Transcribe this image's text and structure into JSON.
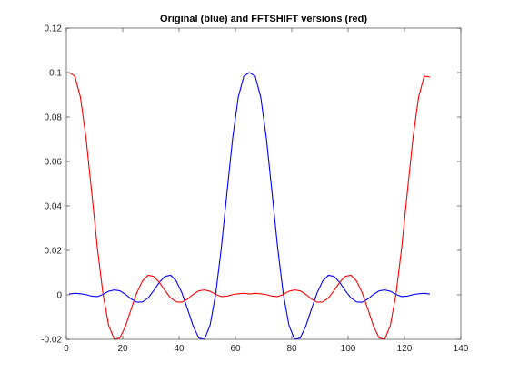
{
  "chart_data": {
    "type": "line",
    "title": "Original (blue) and FFTSHIFT versions (red)",
    "xlabel": "",
    "ylabel": "",
    "xlim": [
      0,
      140
    ],
    "ylim": [
      -0.02,
      0.12
    ],
    "x_ticks": [
      0,
      20,
      40,
      60,
      80,
      100,
      120,
      140
    ],
    "x_tick_labels": [
      "0",
      "20",
      "40",
      "60",
      "80",
      "100",
      "120",
      "140"
    ],
    "y_ticks": [
      -0.02,
      0,
      0.02,
      0.04,
      0.06,
      0.08,
      0.1,
      0.12
    ],
    "y_tick_labels": [
      "-0.02",
      "0",
      "0.02",
      "0.04",
      "0.06",
      "0.08",
      "0.1",
      "0.12"
    ],
    "grid": false,
    "legend": "none",
    "series": [
      {
        "color": "#0000ff",
        "x": [
          1,
          3,
          5,
          7,
          9,
          11,
          13,
          15,
          17,
          19,
          21,
          23,
          25,
          27,
          29,
          31,
          33,
          35,
          37,
          39,
          41,
          43,
          45,
          47,
          49,
          51,
          53,
          55,
          57,
          59,
          61,
          63,
          65,
          67,
          69,
          71,
          73,
          75,
          77,
          79,
          81,
          83,
          85,
          87,
          89,
          91,
          93,
          95,
          97,
          99,
          101,
          103,
          105,
          107,
          109,
          111,
          113,
          115,
          117,
          119,
          121,
          123,
          125,
          127,
          129
        ],
        "y": [
          0.0004,
          0.0007,
          0.0005,
          0.0001,
          -0.0006,
          -0.0008,
          0.0002,
          0.0016,
          0.0022,
          0.0018,
          0.0002,
          -0.0019,
          -0.0033,
          -0.0032,
          -0.0014,
          0.0019,
          0.0056,
          0.0083,
          0.0088,
          0.0062,
          0.0009,
          -0.0064,
          -0.014,
          -0.0194,
          -0.02,
          -0.0137,
          0.0004,
          0.0211,
          0.046,
          0.0703,
          0.0889,
          0.0984,
          0.1,
          0.0984,
          0.0889,
          0.0703,
          0.046,
          0.0211,
          0.0004,
          -0.0137,
          -0.02,
          -0.0194,
          -0.014,
          -0.0064,
          0.0009,
          0.0062,
          0.0088,
          0.0083,
          0.0056,
          0.0019,
          -0.0014,
          -0.0032,
          -0.0033,
          -0.0019,
          0.0002,
          0.0018,
          0.0022,
          0.0016,
          0.0002,
          -0.0008,
          -0.0006,
          0.0001,
          0.0005,
          0.0007,
          0.0004
        ]
      },
      {
        "color": "#ff0000",
        "x": [
          1,
          3,
          5,
          7,
          9,
          11,
          13,
          15,
          17,
          19,
          21,
          23,
          25,
          27,
          29,
          31,
          33,
          35,
          37,
          39,
          41,
          43,
          45,
          47,
          49,
          51,
          53,
          55,
          57,
          59,
          61,
          63,
          65,
          67,
          69,
          71,
          73,
          75,
          77,
          79,
          81,
          83,
          85,
          87,
          89,
          91,
          93,
          95,
          97,
          99,
          101,
          103,
          105,
          107,
          109,
          111,
          113,
          115,
          117,
          119,
          121,
          123,
          125,
          127,
          129
        ],
        "y": [
          0.1,
          0.0984,
          0.0889,
          0.0703,
          0.046,
          0.0211,
          0.0004,
          -0.0137,
          -0.02,
          -0.0194,
          -0.014,
          -0.0064,
          0.0009,
          0.0062,
          0.0088,
          0.0083,
          0.0056,
          0.0019,
          -0.0014,
          -0.0032,
          -0.0033,
          -0.0019,
          0.0002,
          0.0018,
          0.0022,
          0.0016,
          0.0002,
          -0.0008,
          -0.0006,
          0.0001,
          0.0005,
          0.0007,
          0.0004,
          0.0007,
          0.0005,
          0.0001,
          -0.0006,
          -0.0008,
          0.0002,
          0.0016,
          0.0022,
          0.0018,
          0.0002,
          -0.0019,
          -0.0033,
          -0.0032,
          -0.0014,
          0.0019,
          0.0056,
          0.0083,
          0.0088,
          0.0062,
          0.0009,
          -0.0064,
          -0.014,
          -0.0194,
          -0.02,
          -0.0137,
          0.0004,
          0.0211,
          0.046,
          0.0703,
          0.0889,
          0.0984,
          0.098
        ]
      }
    ]
  }
}
